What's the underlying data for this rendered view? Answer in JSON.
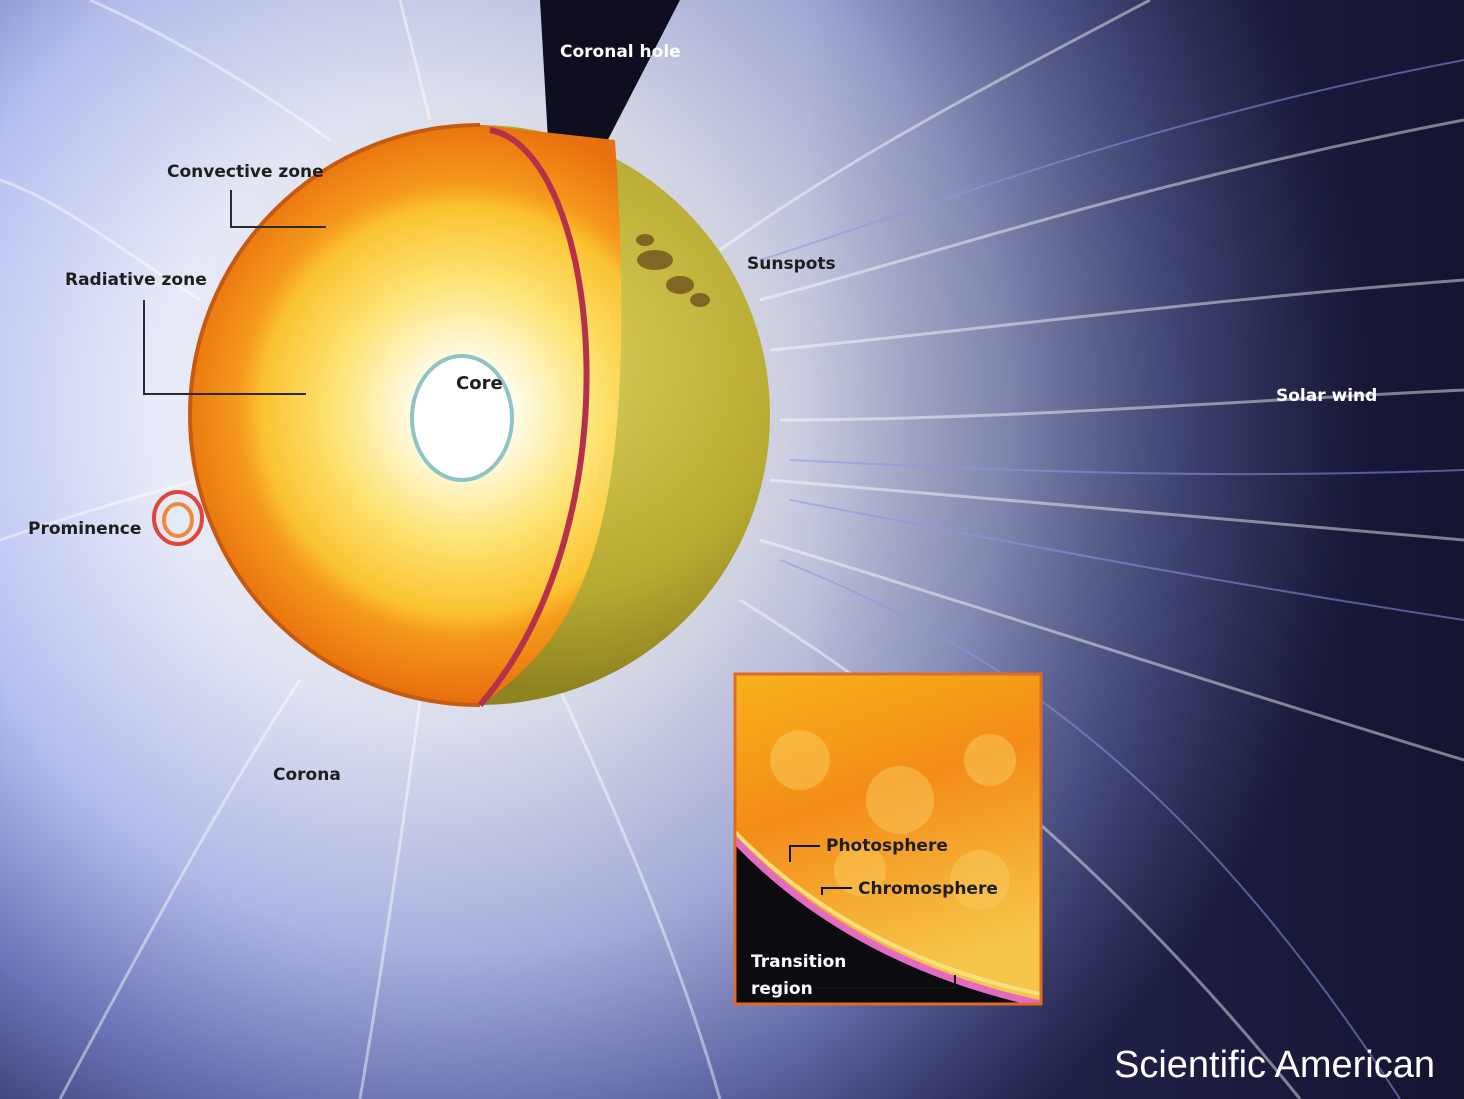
{
  "labels": {
    "coronal_hole": "Coronal hole",
    "convective_zone": "Convective zone",
    "radiative_zone": "Radiative zone",
    "core": "Core",
    "sunspots": "Sunspots",
    "solar_wind": "Solar wind",
    "prominence": "Prominence",
    "corona": "Corona",
    "photosphere": "Photosphere",
    "chromosphere": "Chromosphere",
    "transition_region_line1": "Transition",
    "transition_region_line2": "region"
  },
  "credit": "Scientific American",
  "colors": {
    "space": "#1a1a3a",
    "corona_glow": "#dfe6ff",
    "solar_wind": "#7e88d8",
    "surface": "#b9b03a",
    "convective": "#f07d12",
    "radiative": "#fbd34a",
    "core": "#ffffff",
    "inset_border": "#e06a2a",
    "chromosphere": "#e36cc2"
  }
}
